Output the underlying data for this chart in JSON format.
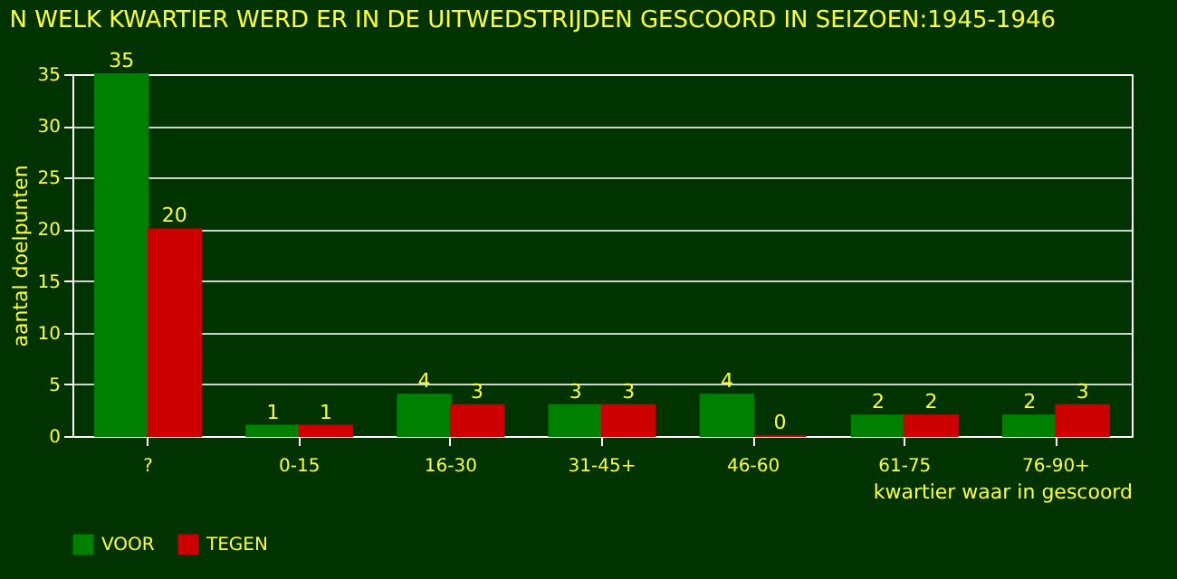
{
  "chart_data": {
    "type": "bar",
    "title": "N WELK KWARTIER WERD ER IN DE UITWEDSTRIJDEN GESCOORD IN SEIZOEN:1945-1946",
    "xlabel": "kwartier waar in gescoord",
    "ylabel": "aantal doelpunten",
    "categories": [
      "?",
      "0-15",
      "16-30",
      "31-45+",
      "46-60",
      "61-75",
      "76-90+"
    ],
    "series": [
      {
        "name": "VOOR",
        "color": "#008000",
        "values": [
          35,
          1,
          4,
          3,
          4,
          2,
          2
        ]
      },
      {
        "name": "TEGEN",
        "color": "#cc0000",
        "values": [
          20,
          1,
          3,
          3,
          0,
          2,
          3
        ]
      }
    ],
    "ylim": [
      0,
      35
    ],
    "yticks": [
      0,
      5,
      10,
      15,
      20,
      25,
      30,
      35
    ],
    "grid": "y",
    "legend": "bottom",
    "data_labels": true
  }
}
